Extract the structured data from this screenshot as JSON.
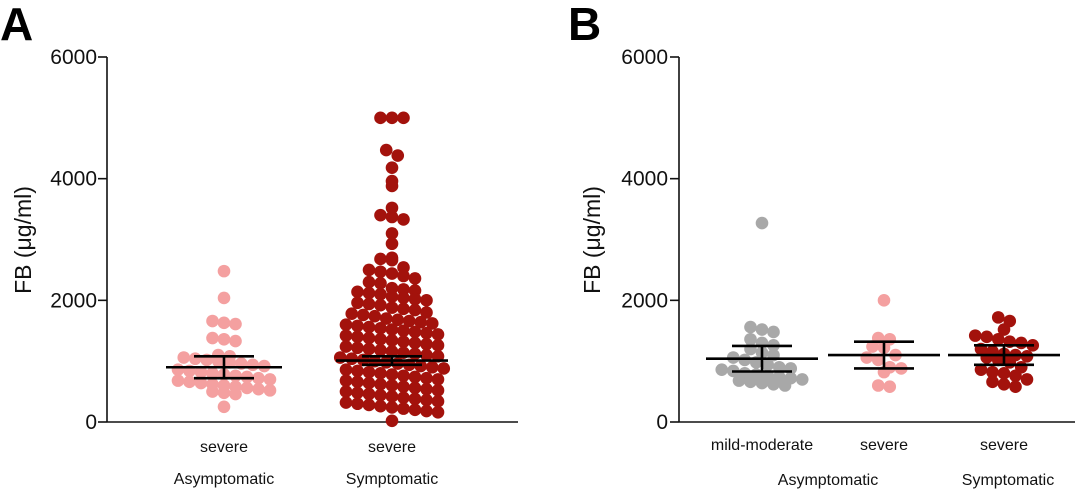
{
  "colors": {
    "light_pink": "#F4A0A0",
    "dark_red": "#A3120C",
    "gray": "#A8A8A8",
    "axis": "#111111",
    "error_bar": "#000000"
  },
  "chart_data": [
    {
      "panel": "A",
      "type": "scatter",
      "ylabel": "FB (μg/ml)",
      "ylim": [
        0,
        6000
      ],
      "yticks": [
        0,
        2000,
        4000,
        6000
      ],
      "ytick_labels": [
        "0",
        "2000",
        "4000",
        "6000"
      ],
      "categories": [
        {
          "label": "severe",
          "group": "Asymptomatic",
          "color": "light_pink",
          "mean": 900,
          "ci_low": 720,
          "ci_high": 1080,
          "values": [
            2480,
            2040,
            1660,
            1630,
            1610,
            1380,
            1360,
            1330,
            1100,
            1080,
            1060,
            1040,
            1020,
            1000,
            980,
            960,
            940,
            920,
            860,
            840,
            820,
            800,
            780,
            760,
            740,
            720,
            700,
            680,
            660,
            640,
            620,
            600,
            580,
            560,
            540,
            520,
            500,
            480,
            460,
            250
          ]
        },
        {
          "label": "severe",
          "group": "Symptomatic",
          "color": "dark_red",
          "mean": 1010,
          "ci_low": 940,
          "ci_high": 1080,
          "values": [
            5000,
            5000,
            5000,
            4470,
            4380,
            4180,
            3960,
            3880,
            3520,
            3400,
            3370,
            3330,
            3100,
            2930,
            2700,
            2680,
            2660,
            2540,
            2500,
            2470,
            2440,
            2400,
            2360,
            2300,
            2280,
            2200,
            2180,
            2160,
            2140,
            2120,
            2100,
            2060,
            2040,
            2020,
            2000,
            1960,
            1940,
            1920,
            1880,
            1860,
            1840,
            1800,
            1780,
            1760,
            1740,
            1700,
            1680,
            1660,
            1640,
            1620,
            1600,
            1580,
            1560,
            1540,
            1520,
            1500,
            1480,
            1460,
            1440,
            1420,
            1400,
            1380,
            1360,
            1340,
            1320,
            1300,
            1280,
            1260,
            1240,
            1220,
            1200,
            1180,
            1160,
            1140,
            1120,
            1100,
            1080,
            1060,
            1040,
            1020,
            1000,
            980,
            960,
            940,
            920,
            900,
            880,
            860,
            840,
            820,
            800,
            780,
            760,
            740,
            720,
            700,
            680,
            660,
            640,
            620,
            600,
            580,
            560,
            540,
            520,
            500,
            480,
            460,
            440,
            420,
            400,
            380,
            360,
            340,
            320,
            300,
            280,
            260,
            240,
            220,
            200,
            180,
            160,
            20
          ]
        }
      ],
      "groups": [
        "Asymptomatic",
        "Symptomatic"
      ]
    },
    {
      "panel": "B",
      "type": "scatter",
      "ylabel": "FB (μg/ml)",
      "ylim": [
        0,
        6000
      ],
      "yticks": [
        0,
        2000,
        4000,
        6000
      ],
      "ytick_labels": [
        "0",
        "2000",
        "4000",
        "6000"
      ],
      "categories": [
        {
          "label": "mild-moderate",
          "group": "Asymptomatic",
          "color": "gray",
          "mean": 1040,
          "ci_low": 830,
          "ci_high": 1250,
          "values": [
            3270,
            1560,
            1520,
            1480,
            1360,
            1300,
            1260,
            1200,
            1140,
            1100,
            1060,
            1020,
            980,
            940,
            900,
            880,
            860,
            840,
            800,
            780,
            760,
            740,
            720,
            700,
            680,
            660,
            640,
            620,
            600
          ]
        },
        {
          "label": "severe",
          "group": "Asymptomatic",
          "color": "light_pink",
          "mean": 1100,
          "ci_low": 880,
          "ci_high": 1320,
          "values": [
            2000,
            1380,
            1360,
            1240,
            1220,
            1100,
            1060,
            1020,
            900,
            880,
            820,
            600,
            580
          ]
        },
        {
          "label": "severe",
          "group": "Symptomatic",
          "color": "dark_red",
          "mean": 1100,
          "ci_low": 940,
          "ci_high": 1260,
          "values": [
            1720,
            1660,
            1520,
            1420,
            1400,
            1360,
            1320,
            1300,
            1260,
            1200,
            1160,
            1120,
            1100,
            1080,
            1060,
            1020,
            980,
            900,
            860,
            820,
            800,
            760,
            700,
            660,
            620,
            580
          ]
        }
      ],
      "groups": [
        "Asymptomatic",
        "Symptomatic"
      ]
    }
  ]
}
